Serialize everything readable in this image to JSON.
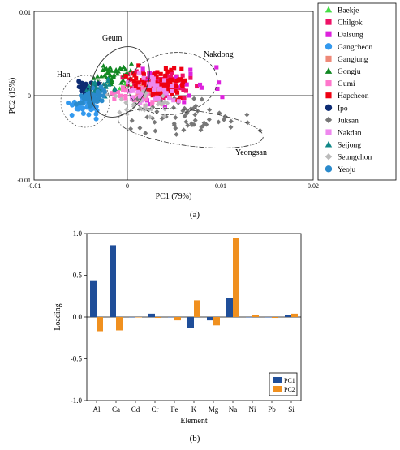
{
  "chart_data": [
    {
      "type": "scatter",
      "panel_label": "(a)",
      "xlabel": "PC1 (79%)",
      "ylabel": "PC2 (15%)",
      "xlim": [
        -0.01,
        0.02
      ],
      "ylim": [
        -0.01,
        0.01
      ],
      "x_ticks": [
        "-0.01",
        "0",
        "0.01",
        "0.02"
      ],
      "y_ticks": [
        "-0.01",
        "0",
        "0.01"
      ],
      "annotations": [
        "Han",
        "Geum",
        "Nakdong",
        "Yeongsan"
      ],
      "legend_position": "right",
      "series": [
        {
          "name": "Baekje",
          "marker": "triangle",
          "color": "#44dd44",
          "centroid": [
            -0.0003,
            0.0012
          ],
          "spread": [
            0.0007,
            0.0006
          ],
          "n": 8
        },
        {
          "name": "Chilgok",
          "marker": "square",
          "color": "#ee1166",
          "centroid": [
            0.0032,
            0.0012
          ],
          "spread": [
            0.0016,
            0.0007
          ],
          "n": 120
        },
        {
          "name": "Dalsung",
          "marker": "square",
          "color": "#dd22dd",
          "centroid": [
            0.0045,
            0.0015
          ],
          "spread": [
            0.0025,
            0.001
          ],
          "n": 30
        },
        {
          "name": "Gangcheon",
          "marker": "circle",
          "color": "#3399ee",
          "centroid": [
            -0.0045,
            -0.0012
          ],
          "spread": [
            0.0008,
            0.0006
          ],
          "n": 35
        },
        {
          "name": "Gangjung",
          "marker": "square",
          "color": "#ee8877",
          "centroid": [
            0.0025,
            0.0005
          ],
          "spread": [
            0.0012,
            0.0006
          ],
          "n": 25
        },
        {
          "name": "Gongju",
          "marker": "triangle",
          "color": "#118822",
          "centroid": [
            -0.0015,
            0.0025
          ],
          "spread": [
            0.0008,
            0.0009
          ],
          "n": 45
        },
        {
          "name": "Gumi",
          "marker": "square",
          "color": "#ff77cc",
          "centroid": [
            0.0012,
            0.0001
          ],
          "spread": [
            0.0014,
            0.0006
          ],
          "n": 35
        },
        {
          "name": "Hapcheon",
          "marker": "square",
          "color": "#ee0011",
          "centroid": [
            0.0035,
            0.0015
          ],
          "spread": [
            0.0015,
            0.0008
          ],
          "n": 80
        },
        {
          "name": "Ipo",
          "marker": "circle",
          "color": "#0d2b73",
          "centroid": [
            -0.0043,
            0.0006
          ],
          "spread": [
            0.0006,
            0.0006
          ],
          "n": 30
        },
        {
          "name": "Juksan",
          "marker": "diamond",
          "color": "#777777",
          "centroid": [
            0.0055,
            -0.0028
          ],
          "spread": [
            0.0035,
            0.0011
          ],
          "n": 60
        },
        {
          "name": "Nakdan",
          "marker": "square",
          "color": "#ee88ee",
          "centroid": [
            0.0028,
            0.0008
          ],
          "spread": [
            0.0016,
            0.0009
          ],
          "n": 35
        },
        {
          "name": "Seijong",
          "marker": "triangle",
          "color": "#118888",
          "centroid": [
            -0.0028,
            0.0008
          ],
          "spread": [
            0.0008,
            0.0006
          ],
          "n": 40
        },
        {
          "name": "Seungchon",
          "marker": "diamond",
          "color": "#bbbbbb",
          "centroid": [
            0.0018,
            -0.0012
          ],
          "spread": [
            0.0016,
            0.0008
          ],
          "n": 30
        },
        {
          "name": "Yeoju",
          "marker": "circle",
          "color": "#2a8acc",
          "centroid": [
            -0.0038,
            -0.0003
          ],
          "spread": [
            0.0007,
            0.0006
          ],
          "n": 35
        }
      ]
    },
    {
      "type": "bar",
      "panel_label": "(b)",
      "xlabel": "Element",
      "ylabel": "Loading",
      "ylim": [
        -1.0,
        1.0
      ],
      "y_ticks": [
        "-1.0",
        "-0.5",
        "0.0",
        "0.5",
        "1.0"
      ],
      "categories": [
        "Al",
        "Ca",
        "Cd",
        "Cr",
        "Fe",
        "K",
        "Mg",
        "Na",
        "Ni",
        "Pb",
        "Si"
      ],
      "legend_position": "bottom-right",
      "series": [
        {
          "name": "PC1",
          "color": "#1f4e99",
          "values": [
            0.44,
            0.86,
            0.0,
            0.04,
            0.0,
            -0.13,
            -0.04,
            0.23,
            0.0,
            0.0,
            0.02
          ]
        },
        {
          "name": "PC2",
          "color": "#f0901f",
          "values": [
            -0.17,
            -0.16,
            0.0,
            -0.01,
            -0.04,
            0.2,
            -0.1,
            0.95,
            0.02,
            -0.01,
            0.04
          ]
        }
      ]
    }
  ]
}
